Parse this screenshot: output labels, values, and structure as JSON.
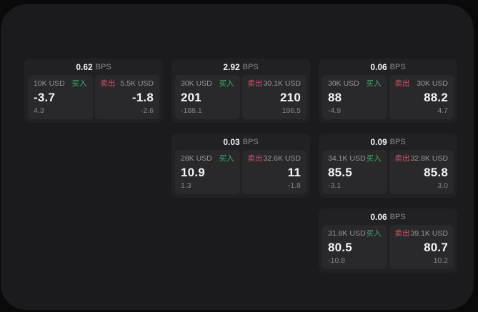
{
  "labels": {
    "buy": "买入",
    "sell": "卖出",
    "bps_unit": "BPS"
  },
  "colors": {
    "page_bg": "#0a0a0b",
    "panel_bg": "#1b1b1d",
    "card_bg": "#212123",
    "subpanel_bg": "#29292b",
    "buy_accent": "#3bb162",
    "sell_accent": "#d05066",
    "value_text": "#f4f4f5",
    "muted_text": "#97979a"
  },
  "cards": [
    {
      "bps": "0.62",
      "buy": {
        "size": "10K USD",
        "value": "-3.7",
        "delta": "4.3"
      },
      "sell": {
        "size": "5.5K USD",
        "value": "-1.8",
        "delta": "-2.6"
      }
    },
    {
      "bps": "2.92",
      "buy": {
        "size": "30K USD",
        "value": "201",
        "delta": "-188.1"
      },
      "sell": {
        "size": "30.1K USD",
        "value": "210",
        "delta": "196.5"
      }
    },
    {
      "bps": "0.06",
      "buy": {
        "size": "30K USD",
        "value": "88",
        "delta": "-4.9"
      },
      "sell": {
        "size": "30K USD",
        "value": "88.2",
        "delta": "4.7"
      }
    },
    {
      "bps": "0.03",
      "buy": {
        "size": "28K USD",
        "value": "10.9",
        "delta": "1.3"
      },
      "sell": {
        "size": "32.6K USD",
        "value": "11",
        "delta": "-1.8"
      }
    },
    {
      "bps": "0.09",
      "buy": {
        "size": "34.1K USD",
        "value": "85.5",
        "delta": "-3.1"
      },
      "sell": {
        "size": "32.8K USD",
        "value": "85.8",
        "delta": "3.0"
      }
    },
    {
      "bps": "0.06",
      "buy": {
        "size": "31.8K USD",
        "value": "80.5",
        "delta": "-10.8"
      },
      "sell": {
        "size": "39.1K USD",
        "value": "80.7",
        "delta": "10.2"
      }
    }
  ]
}
